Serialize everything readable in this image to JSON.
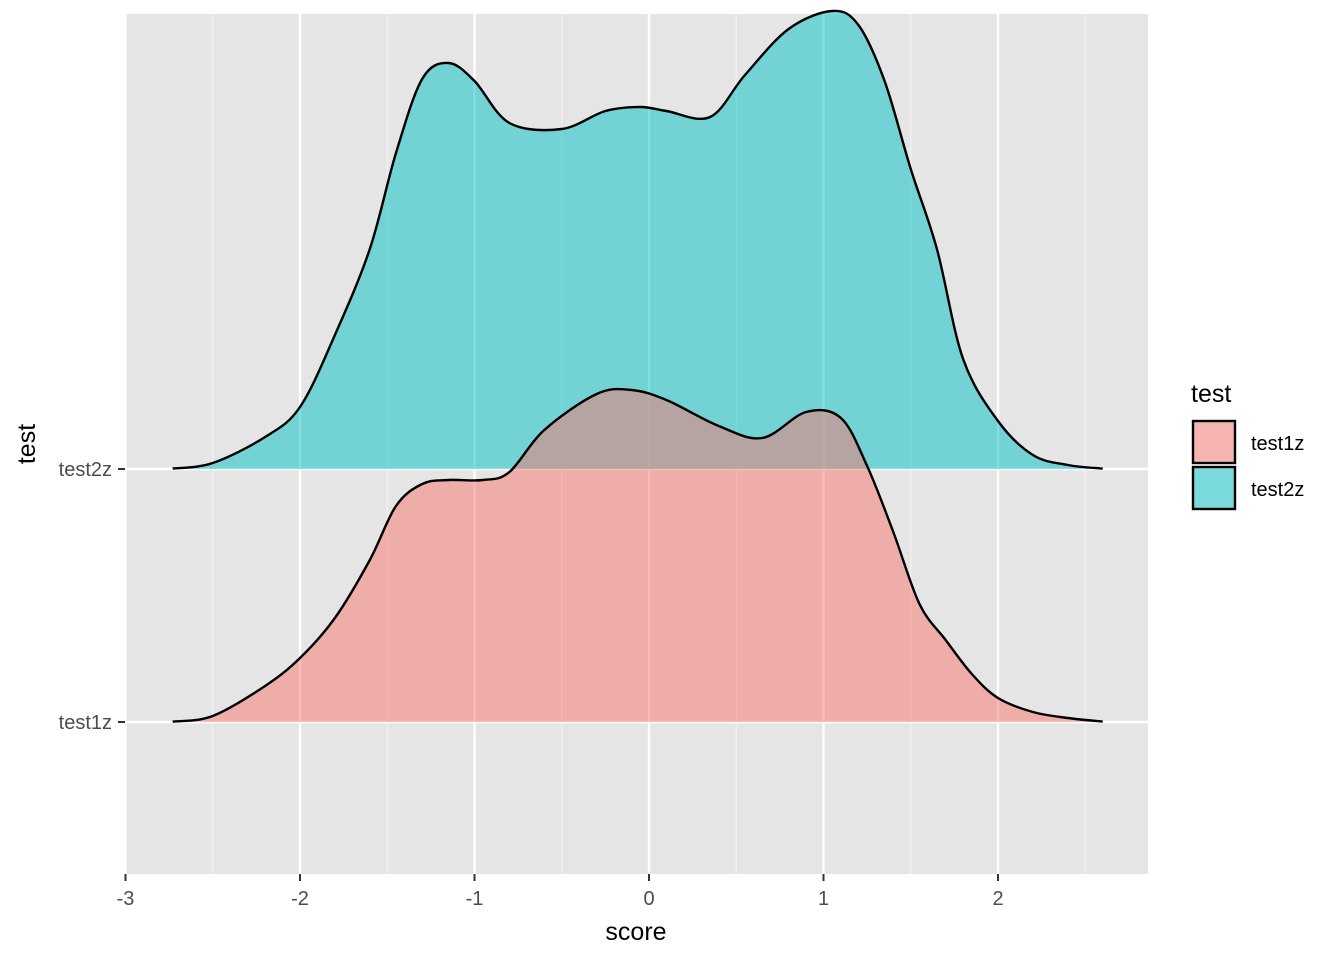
{
  "chart_data": {
    "type": "area",
    "subtype": "ridgeline density",
    "title": "",
    "xlabel": "score",
    "ylabel": "test",
    "xlim": [
      -3,
      2.85
    ],
    "x_ticks": [
      -3,
      -2,
      -1,
      0,
      1,
      2
    ],
    "x_tick_labels": [
      "-3",
      "-2",
      "-1",
      "0",
      "1",
      "2"
    ],
    "y_categories": [
      "test1z",
      "test2z"
    ],
    "grid": true,
    "legend": {
      "title": "test",
      "position": "right",
      "entries": [
        {
          "label": "test1z",
          "color": "#f8766d"
        },
        {
          "label": "test2z",
          "color": "#00bfc4"
        }
      ]
    },
    "fill_alpha": 0.5,
    "series": [
      {
        "name": "test1z",
        "color": "#f8766d",
        "x": [
          -2.73,
          -2.5,
          -2.2,
          -2.0,
          -1.8,
          -1.6,
          -1.45,
          -1.3,
          -1.15,
          -0.95,
          -0.8,
          -0.6,
          -0.3,
          -0.1,
          0.1,
          0.4,
          0.65,
          0.9,
          1.1,
          1.25,
          1.4,
          1.55,
          1.7,
          1.85,
          2.0,
          2.2,
          2.4,
          2.6
        ],
        "density": [
          0.002,
          0.03,
          0.18,
          0.32,
          0.52,
          0.81,
          1.08,
          1.19,
          1.21,
          1.21,
          1.25,
          1.46,
          1.64,
          1.66,
          1.61,
          1.48,
          1.42,
          1.55,
          1.52,
          1.28,
          0.95,
          0.59,
          0.41,
          0.24,
          0.12,
          0.05,
          0.02,
          0.002
        ]
      },
      {
        "name": "test2z",
        "color": "#00bfc4",
        "x": [
          -2.73,
          -2.5,
          -2.2,
          -2.0,
          -1.8,
          -1.6,
          -1.45,
          -1.3,
          -1.15,
          -1.0,
          -0.8,
          -0.5,
          -0.25,
          -0.05,
          0.1,
          0.35,
          0.55,
          0.8,
          1.05,
          1.2,
          1.35,
          1.5,
          1.65,
          1.8,
          2.0,
          2.2,
          2.4,
          2.6
        ],
        "density": [
          0.002,
          0.03,
          0.16,
          0.31,
          0.67,
          1.1,
          1.58,
          1.95,
          2.03,
          1.94,
          1.73,
          1.7,
          1.79,
          1.81,
          1.79,
          1.76,
          1.97,
          2.2,
          2.29,
          2.22,
          1.94,
          1.5,
          1.1,
          0.55,
          0.24,
          0.07,
          0.02,
          0.002
        ]
      }
    ]
  }
}
